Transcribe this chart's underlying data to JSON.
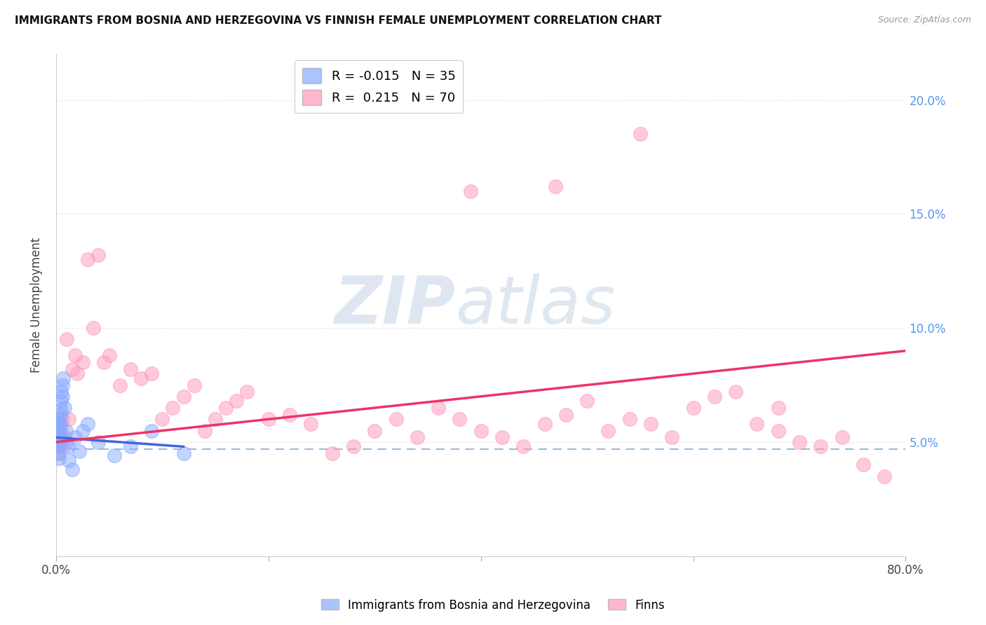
{
  "title": "IMMIGRANTS FROM BOSNIA AND HERZEGOVINA VS FINNISH FEMALE UNEMPLOYMENT CORRELATION CHART",
  "source": "Source: ZipAtlas.com",
  "ylabel": "Female Unemployment",
  "ylim": [
    0.0,
    0.22
  ],
  "xlim": [
    0.0,
    0.8
  ],
  "yticks": [
    0.05,
    0.1,
    0.15,
    0.2
  ],
  "ytick_labels": [
    "5.0%",
    "10.0%",
    "15.0%",
    "20.0%"
  ],
  "blue_R": "-0.015",
  "blue_N": "35",
  "pink_R": "0.215",
  "pink_N": "70",
  "blue_label": "Immigrants from Bosnia and Herzegovina",
  "pink_label": "Finns",
  "watermark_zip": "ZIP",
  "watermark_atlas": "atlas",
  "blue_color": "#88aaff",
  "pink_color": "#ff99bb",
  "blue_line_color": "#4466dd",
  "pink_line_color": "#ee3366",
  "dashed_line_color": "#99bbdd",
  "dashed_line_y": 0.047,
  "background_color": "#ffffff",
  "grid_color": "#dddddd",
  "blue_scatter_x": [
    0.001,
    0.001,
    0.001,
    0.002,
    0.002,
    0.002,
    0.002,
    0.003,
    0.003,
    0.003,
    0.003,
    0.004,
    0.004,
    0.004,
    0.005,
    0.005,
    0.005,
    0.006,
    0.006,
    0.007,
    0.008,
    0.009,
    0.01,
    0.011,
    0.012,
    0.015,
    0.018,
    0.022,
    0.025,
    0.03,
    0.04,
    0.055,
    0.07,
    0.09,
    0.12
  ],
  "blue_scatter_y": [
    0.052,
    0.048,
    0.055,
    0.05,
    0.045,
    0.058,
    0.053,
    0.06,
    0.056,
    0.049,
    0.043,
    0.062,
    0.058,
    0.054,
    0.072,
    0.068,
    0.064,
    0.075,
    0.07,
    0.078,
    0.065,
    0.055,
    0.05,
    0.048,
    0.042,
    0.038,
    0.052,
    0.046,
    0.055,
    0.058,
    0.05,
    0.044,
    0.048,
    0.055,
    0.045
  ],
  "pink_scatter_x": [
    0.001,
    0.002,
    0.002,
    0.003,
    0.003,
    0.004,
    0.004,
    0.005,
    0.005,
    0.006,
    0.007,
    0.008,
    0.01,
    0.012,
    0.015,
    0.018,
    0.02,
    0.025,
    0.03,
    0.035,
    0.04,
    0.045,
    0.05,
    0.06,
    0.07,
    0.08,
    0.09,
    0.1,
    0.11,
    0.12,
    0.13,
    0.14,
    0.15,
    0.16,
    0.17,
    0.18,
    0.2,
    0.22,
    0.24,
    0.26,
    0.28,
    0.3,
    0.32,
    0.34,
    0.36,
    0.38,
    0.4,
    0.42,
    0.44,
    0.46,
    0.48,
    0.5,
    0.52,
    0.54,
    0.56,
    0.58,
    0.6,
    0.62,
    0.64,
    0.66,
    0.68,
    0.7,
    0.72,
    0.74,
    0.76,
    0.78,
    0.55,
    0.47,
    0.39,
    0.68
  ],
  "pink_scatter_y": [
    0.052,
    0.05,
    0.045,
    0.055,
    0.048,
    0.052,
    0.058,
    0.05,
    0.055,
    0.06,
    0.048,
    0.052,
    0.095,
    0.06,
    0.082,
    0.088,
    0.08,
    0.085,
    0.13,
    0.1,
    0.132,
    0.085,
    0.088,
    0.075,
    0.082,
    0.078,
    0.08,
    0.06,
    0.065,
    0.07,
    0.075,
    0.055,
    0.06,
    0.065,
    0.068,
    0.072,
    0.06,
    0.062,
    0.058,
    0.045,
    0.048,
    0.055,
    0.06,
    0.052,
    0.065,
    0.06,
    0.055,
    0.052,
    0.048,
    0.058,
    0.062,
    0.068,
    0.055,
    0.06,
    0.058,
    0.052,
    0.065,
    0.07,
    0.072,
    0.058,
    0.065,
    0.05,
    0.048,
    0.052,
    0.04,
    0.035,
    0.185,
    0.162,
    0.16,
    0.055
  ],
  "blue_line_x": [
    0.0,
    0.12
  ],
  "blue_line_y": [
    0.052,
    0.048
  ],
  "pink_line_x": [
    0.0,
    0.8
  ],
  "pink_line_y": [
    0.05,
    0.09
  ]
}
